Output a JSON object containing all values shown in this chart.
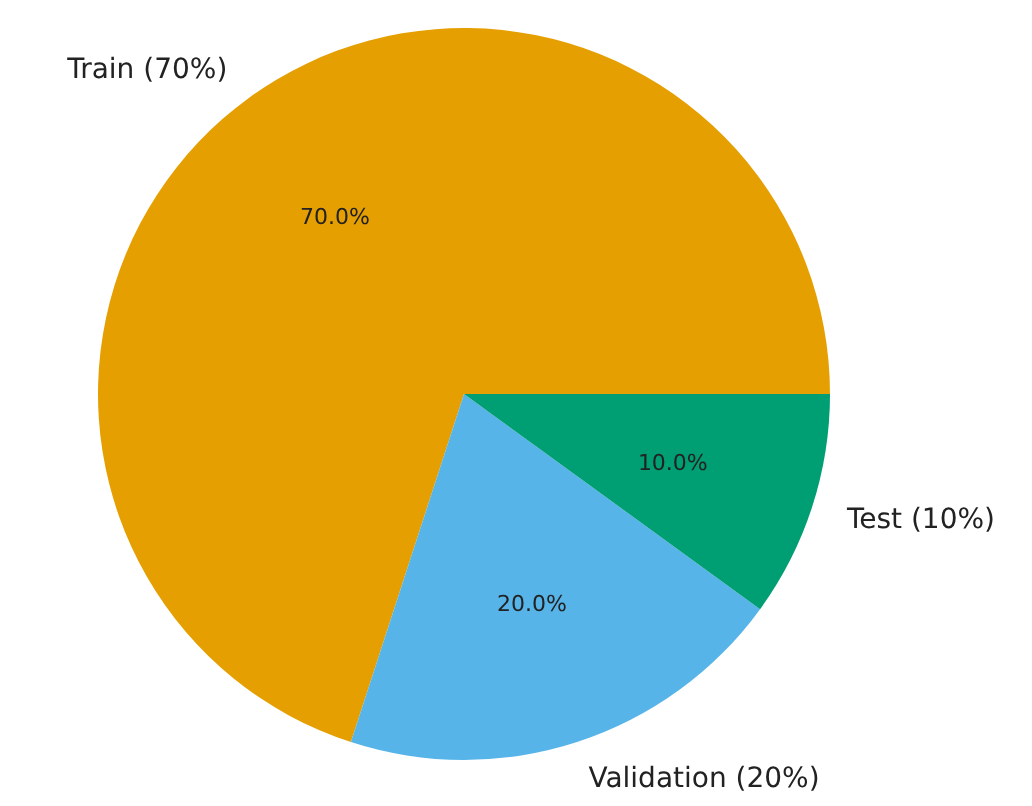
{
  "chart_data": {
    "type": "pie",
    "categories": [
      "Train (70%)",
      "Validation (20%)",
      "Test (10%)"
    ],
    "values": [
      70,
      20,
      10
    ],
    "colors": [
      "#e69f00",
      "#56b4e9",
      "#009e73"
    ],
    "value_labels": [
      "70.0%",
      "20.0%",
      "10.0%"
    ]
  }
}
